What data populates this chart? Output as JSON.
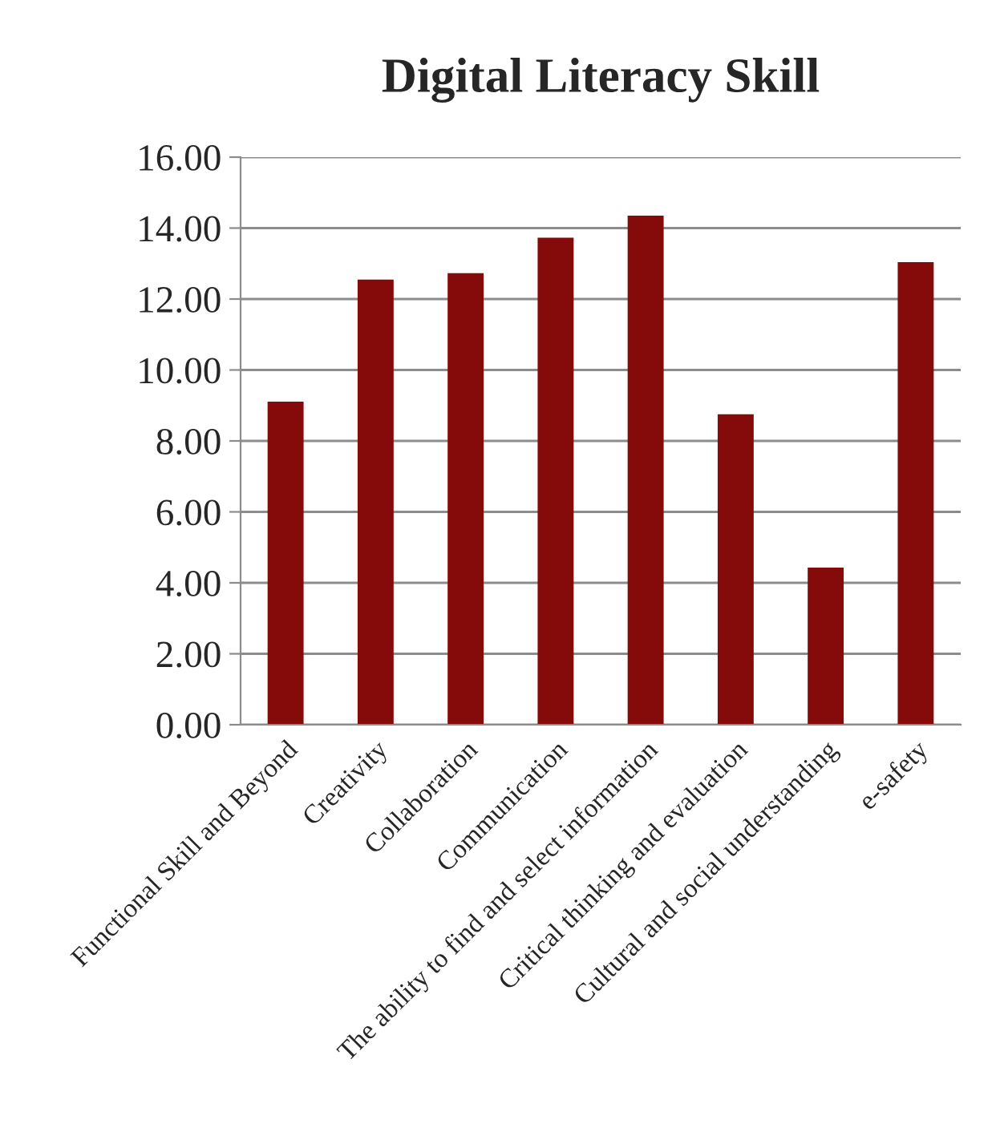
{
  "chart_data": {
    "type": "bar",
    "title": "Digital Literacy Skill",
    "categories": [
      "Functional Skill and Beyond",
      "Creativity",
      "Collaboration",
      "Communication",
      "The ability to find and select information",
      "Critical thinking and evaluation",
      "Cultural and social understanding",
      "e-safety"
    ],
    "values": [
      9.11,
      12.55,
      12.73,
      13.73,
      14.35,
      8.75,
      4.43,
      13.04
    ],
    "color": "#840b0a",
    "ylim": [
      0,
      16
    ],
    "yticks": [
      {
        "value": 0,
        "label": "0.00"
      },
      {
        "value": 2,
        "label": "2.00"
      },
      {
        "value": 4,
        "label": "4.00"
      },
      {
        "value": 6,
        "label": "6.00"
      },
      {
        "value": 8,
        "label": "8.00"
      },
      {
        "value": 10,
        "label": "10.00"
      },
      {
        "value": 12,
        "label": "12.00"
      },
      {
        "value": 14,
        "label": "14.00"
      },
      {
        "value": 16,
        "label": "16.00"
      }
    ],
    "grid": "y",
    "legend": false
  }
}
